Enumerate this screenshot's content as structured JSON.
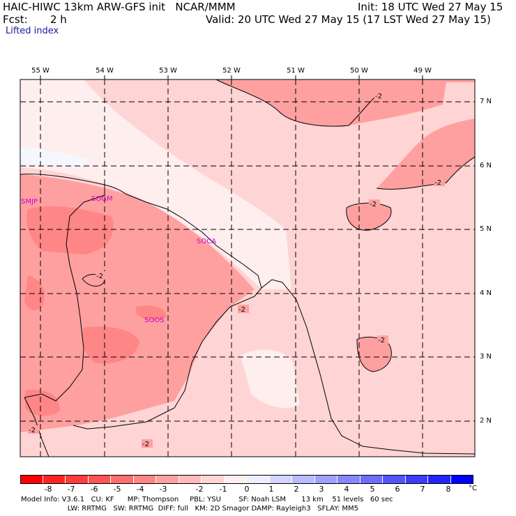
{
  "header": {
    "model_line": "HAIC-HIWC 13km ARW-GFS init   NCAR/MMM",
    "init": "Init: 18 UTC Wed 27 May 15",
    "fcst_label": "Fcst:",
    "fcst_value": "2 h",
    "valid": "Valid: 20 UTC Wed 27 May 15 (17 LST Wed 27 May 15)"
  },
  "field_title": "Lifted index",
  "longitude_labels": [
    "55 W",
    "54 W",
    "53 W",
    "52 W",
    "51 W",
    "50 W",
    "49 W"
  ],
  "latitude_labels": [
    "7 N",
    "6 N",
    "5 N",
    "4 N",
    "3 N",
    "2 N"
  ],
  "stations": [
    "SMJP",
    "SOGM",
    "SOCA",
    "SOOS"
  ],
  "contour_label": "-2",
  "colorbar": {
    "ticks": [
      "-8",
      "-7",
      "-6",
      "-5",
      "-4",
      "-3",
      "-2",
      "-1",
      "0",
      "1",
      "2",
      "3",
      "4",
      "5",
      "6",
      "7",
      "8"
    ],
    "unit": "°C",
    "colors": [
      "#ff0000",
      "#ff2424",
      "#ff3c3c",
      "#ff5454",
      "#ff6d6d",
      "#ff8686",
      "#ffa0a0",
      "#ffbaba",
      "#ffd4d4",
      "#ffeeee",
      "#eeeeff",
      "#d4d4ff",
      "#babaff",
      "#a0a0ff",
      "#8686ff",
      "#6d6dff",
      "#5454ff",
      "#3c3cff",
      "#2424ff",
      "#0000ff"
    ]
  },
  "model_info": {
    "line1": "Model Info: V3.6.1   CU: KF      MP: Thompson     PBL: YSU        SF: Noah LSM       13 km    51 levels   60 sec",
    "line2": "                     LW: RRTMG   SW: RRTMG  DIFF: full   KM: 2D Smagor DAMP: Rayleigh3   SFLAY: MM5"
  }
}
